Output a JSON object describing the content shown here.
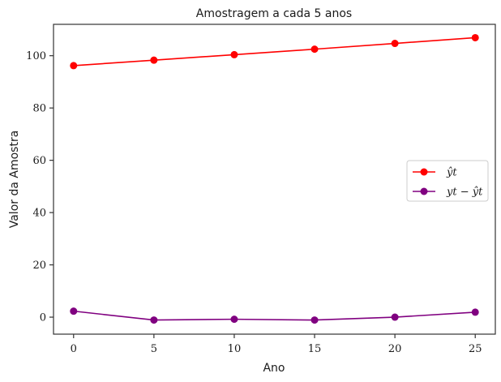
{
  "chart_data": {
    "type": "line",
    "title": "Amostragem a cada 5 anos",
    "xlabel": "Ano",
    "ylabel": "Valor da Amostra",
    "x": [
      0,
      5,
      10,
      15,
      20,
      25
    ],
    "xticks": [
      0,
      5,
      10,
      15,
      20,
      25
    ],
    "yticks": [
      0,
      20,
      40,
      60,
      80,
      100
    ],
    "xlim": [
      -1.25,
      26.25
    ],
    "ylim": [
      -6.5,
      112
    ],
    "grid": false,
    "legend_position": "center-right",
    "series": [
      {
        "name": "ŷt",
        "color": "#ff0000",
        "marker": "circle",
        "values": [
          96.2,
          98.3,
          100.4,
          102.5,
          104.7,
          106.9
        ]
      },
      {
        "name": "yt − ŷt",
        "color": "#800080",
        "marker": "circle",
        "values": [
          2.3,
          -1.1,
          -0.8,
          -1.1,
          0.0,
          1.9
        ]
      }
    ]
  }
}
